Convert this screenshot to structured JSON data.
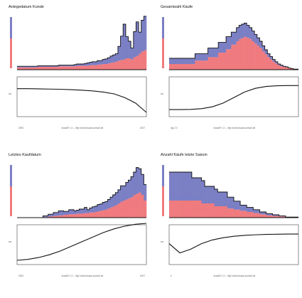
{
  "colors": {
    "series_a": "#7b7fc4",
    "series_b": "#f07b7f",
    "line": "#111111"
  },
  "chart_data": [
    {
      "type": "area",
      "title": "Anlegedatum Kunde",
      "footer": {
        "left": "2000",
        "center": "ikusai® 1.0 – http://www.ikusai-consult.de",
        "right": "2007"
      },
      "bins": 50,
      "series": [
        {
          "values": [
            0.04,
            0.04,
            0.04,
            0.04,
            0.04,
            0.04,
            0.04,
            0.04,
            0.05,
            0.05,
            0.05,
            0.05,
            0.05,
            0.05,
            0.05,
            0.05,
            0.06,
            0.06,
            0.06,
            0.06,
            0.06,
            0.06,
            0.06,
            0.07,
            0.07,
            0.07,
            0.07,
            0.07,
            0.08,
            0.08,
            0.08,
            0.09,
            0.09,
            0.1,
            0.1,
            0.11,
            0.12,
            0.13,
            0.14,
            0.16,
            0.17,
            0.18,
            0.2,
            0.2,
            0.18,
            0.22,
            0.24,
            0.28,
            0.32,
            0.34
          ]
        },
        {
          "values": [
            0.02,
            0.02,
            0.02,
            0.02,
            0.02,
            0.02,
            0.02,
            0.02,
            0.02,
            0.02,
            0.02,
            0.02,
            0.02,
            0.02,
            0.02,
            0.02,
            0.02,
            0.02,
            0.02,
            0.02,
            0.02,
            0.02,
            0.03,
            0.03,
            0.03,
            0.03,
            0.04,
            0.05,
            0.05,
            0.06,
            0.06,
            0.07,
            0.07,
            0.08,
            0.09,
            0.1,
            0.12,
            0.13,
            0.14,
            0.25,
            0.42,
            0.62,
            0.38,
            0.3,
            0.2,
            0.45,
            0.6,
            0.38,
            0.55,
            0.6
          ]
        }
      ],
      "curve": [
        0.28,
        0.28,
        0.27,
        0.26,
        0.25,
        0.23,
        0.2,
        0.16,
        0.1,
        0.0,
        -0.2,
        -0.5,
        -1.0
      ]
    },
    {
      "type": "area",
      "title": "Gesamtzahl Käufe",
      "footer": {
        "left": "log 2.0",
        "center": "ikusai® 1.0 – http://www.ikusai-consult.de",
        "right": ""
      },
      "bins": 50,
      "series": [
        {
          "values": [
            0.1,
            0.1,
            0.1,
            0.1,
            0.1,
            0.1,
            0.1,
            0.1,
            0.1,
            0.1,
            0.16,
            0.16,
            0.16,
            0.16,
            0.16,
            0.22,
            0.22,
            0.22,
            0.22,
            0.3,
            0.3,
            0.3,
            0.36,
            0.36,
            0.44,
            0.44,
            0.5,
            0.54,
            0.56,
            0.58,
            0.56,
            0.54,
            0.5,
            0.46,
            0.42,
            0.38,
            0.32,
            0.27,
            0.22,
            0.18,
            0.14,
            0.11,
            0.08,
            0.06,
            0.05,
            0.04,
            0.03,
            0.02,
            0.01,
            0.01
          ]
        },
        {
          "values": [
            0.1,
            0.1,
            0.1,
            0.1,
            0.1,
            0.1,
            0.1,
            0.1,
            0.1,
            0.1,
            0.12,
            0.12,
            0.12,
            0.12,
            0.12,
            0.16,
            0.16,
            0.16,
            0.16,
            0.18,
            0.18,
            0.18,
            0.22,
            0.22,
            0.22,
            0.22,
            0.24,
            0.24,
            0.24,
            0.24,
            0.22,
            0.2,
            0.18,
            0.16,
            0.14,
            0.12,
            0.1,
            0.08,
            0.06,
            0.05,
            0.04,
            0.03,
            0.02,
            0.02,
            0.01,
            0.01,
            0.0,
            0.0,
            0.0,
            0.0
          ]
        }
      ],
      "curve": [
        -0.85,
        -0.85,
        -0.84,
        -0.8,
        -0.7,
        -0.5,
        -0.2,
        0.1,
        0.3,
        0.4,
        0.44,
        0.45,
        0.45
      ]
    },
    {
      "type": "area",
      "title": "Letztes Kaufdatum",
      "footer": {
        "left": "2000",
        "center": "ikusai® 1.0 – http://www.ikusai-consult.de",
        "right": "2007"
      },
      "bins": 50,
      "series": [
        {
          "values": [
            0.0,
            0.0,
            0.0,
            0.0,
            0.0,
            0.0,
            0.0,
            0.0,
            0.0,
            0.0,
            0.01,
            0.01,
            0.02,
            0.02,
            0.03,
            0.03,
            0.04,
            0.04,
            0.05,
            0.05,
            0.06,
            0.06,
            0.06,
            0.07,
            0.07,
            0.07,
            0.08,
            0.08,
            0.09,
            0.09,
            0.1,
            0.11,
            0.12,
            0.13,
            0.14,
            0.16,
            0.18,
            0.2,
            0.22,
            0.25,
            0.28,
            0.3,
            0.32,
            0.34,
            0.36,
            0.4,
            0.42,
            0.44,
            0.4,
            0.3
          ]
        },
        {
          "values": [
            0.0,
            0.0,
            0.0,
            0.0,
            0.0,
            0.0,
            0.0,
            0.0,
            0.0,
            0.0,
            0.02,
            0.02,
            0.04,
            0.04,
            0.06,
            0.06,
            0.08,
            0.08,
            0.06,
            0.06,
            0.08,
            0.08,
            0.06,
            0.06,
            0.08,
            0.08,
            0.1,
            0.06,
            0.08,
            0.1,
            0.1,
            0.12,
            0.12,
            0.14,
            0.14,
            0.16,
            0.18,
            0.2,
            0.22,
            0.24,
            0.28,
            0.26,
            0.3,
            0.32,
            0.36,
            0.4,
            0.46,
            0.42,
            0.36,
            0.28
          ]
        }
      ],
      "curve": [
        -1.0,
        -0.95,
        -0.85,
        -0.7,
        -0.5,
        -0.25,
        0.0,
        0.25,
        0.5,
        0.7,
        0.85,
        0.95,
        1.0
      ]
    },
    {
      "type": "area",
      "title": "Anzahl Käufe letzte Saison",
      "footer": {
        "left": "0",
        "center": "ikusai® 1.0 – http://www.ikusai-consult.de",
        "right": ""
      },
      "bins": 40,
      "series": [
        {
          "values": [
            0.3,
            0.3,
            0.3,
            0.3,
            0.3,
            0.3,
            0.3,
            0.3,
            0.3,
            0.3,
            0.25,
            0.25,
            0.25,
            0.25,
            0.2,
            0.2,
            0.2,
            0.2,
            0.16,
            0.16,
            0.14,
            0.14,
            0.12,
            0.12,
            0.1,
            0.1,
            0.08,
            0.08,
            0.06,
            0.06,
            0.04,
            0.04,
            0.03,
            0.03,
            0.02,
            0.02,
            0.01,
            0.01,
            0.01,
            0.01
          ]
        },
        {
          "values": [
            0.5,
            0.5,
            0.5,
            0.5,
            0.5,
            0.5,
            0.5,
            0.4,
            0.4,
            0.4,
            0.4,
            0.3,
            0.3,
            0.3,
            0.3,
            0.25,
            0.25,
            0.25,
            0.2,
            0.2,
            0.15,
            0.15,
            0.1,
            0.1,
            0.08,
            0.08,
            0.06,
            0.06,
            0.04,
            0.04,
            0.03,
            0.03,
            0.02,
            0.02,
            0.01,
            0.01,
            0.0,
            0.0,
            0.0,
            0.0
          ]
        }
      ],
      "curve": [
        -0.1,
        -0.6,
        -0.4,
        -0.1,
        0.1,
        0.22,
        0.3,
        0.35,
        0.38,
        0.4,
        0.41,
        0.42,
        0.42
      ]
    }
  ]
}
